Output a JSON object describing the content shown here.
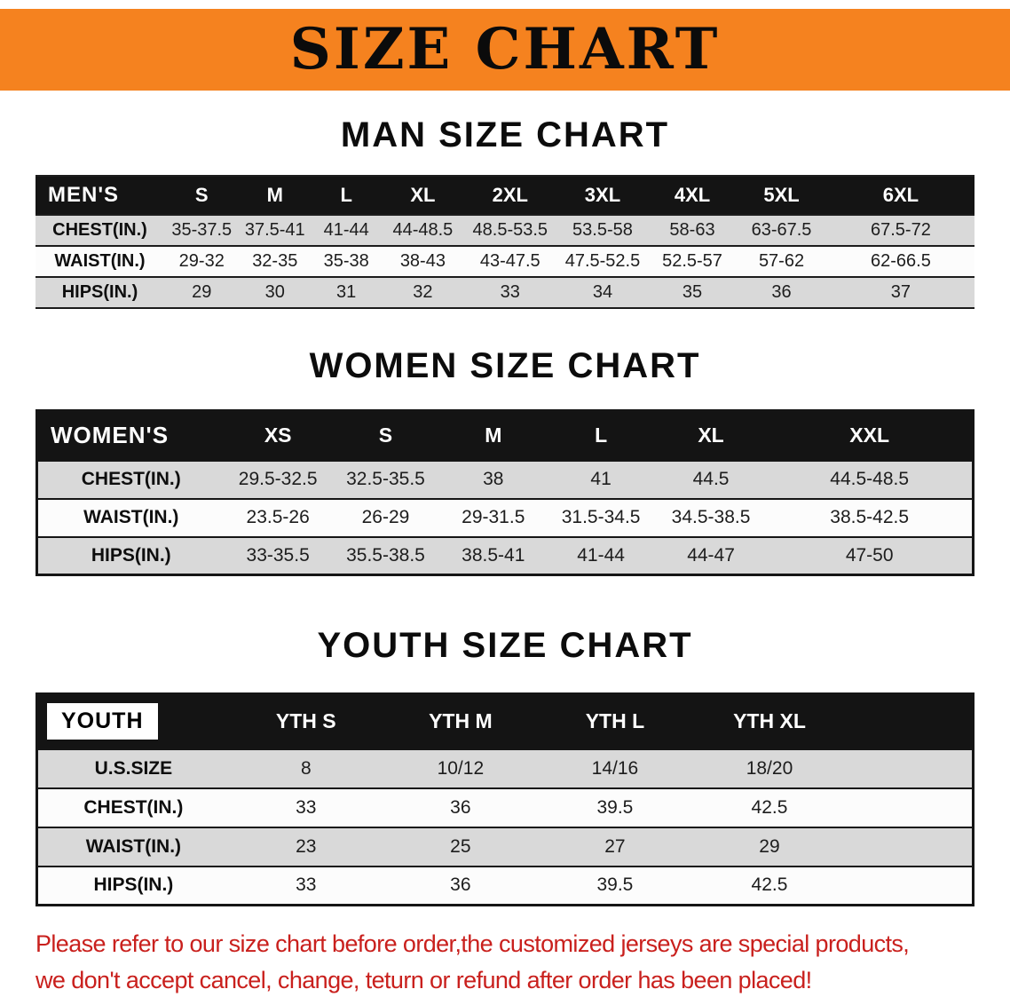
{
  "banner": {
    "title": "SIZE CHART"
  },
  "men": {
    "heading": "MAN SIZE CHART",
    "header": [
      "MEN'S",
      "S",
      "M",
      "L",
      "XL",
      "2XL",
      "3XL",
      "4XL",
      "5XL",
      "6XL"
    ],
    "rows": [
      {
        "label": "CHEST(IN.)",
        "values": [
          "35-37.5",
          "37.5-41",
          "41-44",
          "44-48.5",
          "48.5-53.5",
          "53.5-58",
          "58-63",
          "63-67.5",
          "67.5-72"
        ]
      },
      {
        "label": "WAIST(IN.)",
        "values": [
          "29-32",
          "32-35",
          "35-38",
          "38-43",
          "43-47.5",
          "47.5-52.5",
          "52.5-57",
          "57-62",
          "62-66.5"
        ]
      },
      {
        "label": "HIPS(IN.)",
        "values": [
          "29",
          "30",
          "31",
          "32",
          "33",
          "34",
          "35",
          "36",
          "37"
        ]
      }
    ]
  },
  "women": {
    "heading": "WOMEN SIZE CHART",
    "header": [
      "WOMEN'S",
      "XS",
      "S",
      "M",
      "L",
      "XL",
      "XXL"
    ],
    "rows": [
      {
        "label": "CHEST(IN.)",
        "values": [
          "29.5-32.5",
          "32.5-35.5",
          "38",
          "41",
          "44.5",
          "44.5-48.5"
        ]
      },
      {
        "label": "WAIST(IN.)",
        "values": [
          "23.5-26",
          "26-29",
          "29-31.5",
          "31.5-34.5",
          "34.5-38.5",
          "38.5-42.5"
        ]
      },
      {
        "label": "HIPS(IN.)",
        "values": [
          "33-35.5",
          "35.5-38.5",
          "38.5-41",
          "41-44",
          "44-47",
          "47-50"
        ]
      }
    ]
  },
  "youth": {
    "heading": "YOUTH SIZE CHART",
    "header": [
      "YOUTH",
      "YTH S",
      "YTH M",
      "YTH L",
      "YTH XL"
    ],
    "rows": [
      {
        "label": "U.S.SIZE",
        "values": [
          "8",
          "10/12",
          "14/16",
          "18/20"
        ]
      },
      {
        "label": "CHEST(IN.)",
        "values": [
          "33",
          "36",
          "39.5",
          "42.5"
        ]
      },
      {
        "label": "WAIST(IN.)",
        "values": [
          "23",
          "25",
          "27",
          "29"
        ]
      },
      {
        "label": "HIPS(IN.)",
        "values": [
          "33",
          "36",
          "39.5",
          "42.5"
        ]
      }
    ]
  },
  "footer": {
    "line1": "Please refer to our size chart before order,the customized jerseys are special products,",
    "line2": "we don't accept cancel, change, teturn or refund after order has been placed!"
  },
  "colors": {
    "banner_orange": "#F5821F",
    "table_header_black": "#141414",
    "row_gray": "#D9D9D9",
    "row_white": "#FCFCFC",
    "note_red": "#C9201D"
  }
}
